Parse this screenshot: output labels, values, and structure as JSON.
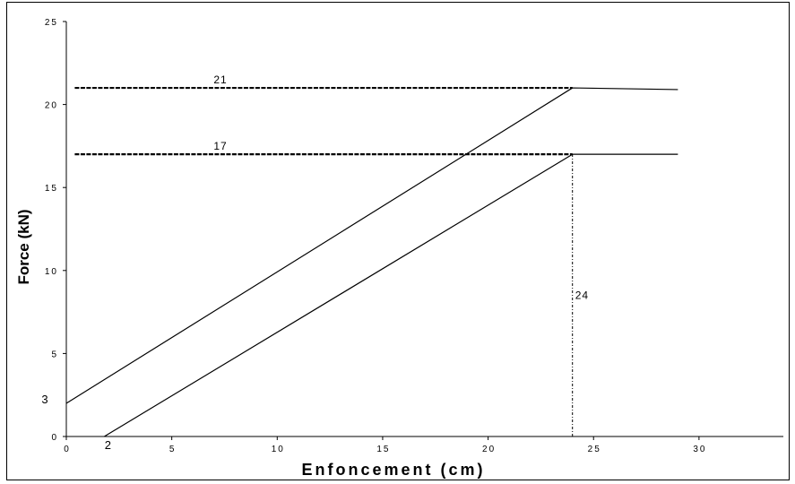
{
  "chart_data": {
    "type": "line",
    "xlabel": "Enfoncement (cm)",
    "ylabel": "Force (kN)",
    "xlim": [
      0,
      34
    ],
    "ylim": [
      0,
      25
    ],
    "x_ticks": [
      "0",
      "5",
      "10",
      "15",
      "20",
      "25",
      "30"
    ],
    "y_ticks": [
      "0",
      "5",
      "10",
      "15",
      "20",
      "25"
    ],
    "grid": false,
    "series": [
      {
        "x": [
          0,
          24,
          29
        ],
        "y": [
          2.0,
          21.0,
          20.9
        ]
      },
      {
        "x": [
          1.8,
          24,
          29
        ],
        "y": [
          0,
          17,
          17
        ]
      }
    ],
    "reference_lines": [
      {
        "axis": "y",
        "value": 21,
        "x_range": [
          0.4,
          24
        ],
        "style": "dashed",
        "label": "21"
      },
      {
        "axis": "y",
        "value": 17,
        "x_range": [
          0.4,
          24
        ],
        "style": "dashed",
        "label": "17"
      },
      {
        "axis": "x",
        "value": 24,
        "y_range": [
          0,
          17
        ],
        "style": "dash-dot",
        "label": "24"
      }
    ],
    "extra_labels": [
      {
        "text": "3",
        "near_axis": "y"
      },
      {
        "text": "2",
        "near_axis": "x"
      }
    ]
  }
}
